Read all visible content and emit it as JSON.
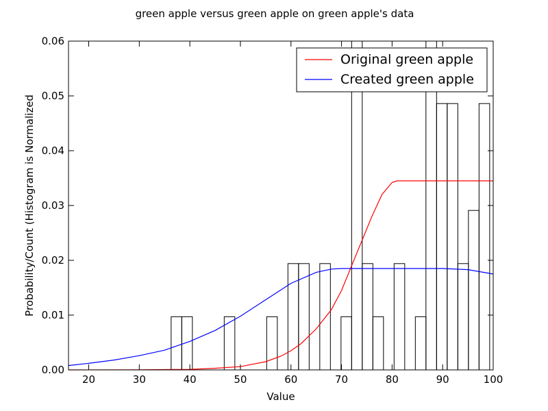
{
  "chart_data": {
    "type": "histogram-with-lines",
    "title": "green apple versus green apple on green apple's data",
    "xlabel": "Value",
    "ylabel": "Probability/Count (Histogram is Normalized",
    "xlim": [
      16,
      100
    ],
    "ylim": [
      0,
      0.06
    ],
    "xticks": [
      20,
      30,
      40,
      50,
      60,
      70,
      80,
      90,
      100
    ],
    "xtick_labels": [
      "20",
      "30",
      "40",
      "50",
      "60",
      "70",
      "80",
      "90",
      "100"
    ],
    "yticks": [
      0,
      0.01,
      0.02,
      0.03,
      0.04,
      0.05,
      0.06
    ],
    "ytick_labels": [
      "0.00",
      "0.01",
      "0.02",
      "0.03",
      "0.04",
      "0.05",
      "0.06"
    ],
    "grid": false,
    "legend_position": "top-right",
    "histogram": {
      "edge_color": "#000000",
      "bars": [
        {
          "x0": 36.3,
          "x1": 38.4,
          "value": 0.0097
        },
        {
          "x0": 38.4,
          "x1": 40.5,
          "value": 0.0097
        },
        {
          "x0": 46.8,
          "x1": 48.9,
          "value": 0.0097
        },
        {
          "x0": 55.2,
          "x1": 57.3,
          "value": 0.0097
        },
        {
          "x0": 59.4,
          "x1": 61.5,
          "value": 0.0194
        },
        {
          "x0": 61.5,
          "x1": 63.6,
          "value": 0.0194
        },
        {
          "x0": 65.7,
          "x1": 67.8,
          "value": 0.0194
        },
        {
          "x0": 69.9,
          "x1": 72.0,
          "value": 0.0097
        },
        {
          "x0": 72.0,
          "x1": 74.1,
          "value": 0.06
        },
        {
          "x0": 74.1,
          "x1": 76.2,
          "value": 0.0194
        },
        {
          "x0": 76.2,
          "x1": 78.3,
          "value": 0.0097
        },
        {
          "x0": 80.4,
          "x1": 82.5,
          "value": 0.0194
        },
        {
          "x0": 84.6,
          "x1": 86.7,
          "value": 0.0097
        },
        {
          "x0": 86.7,
          "x1": 88.8,
          "value": 0.06
        },
        {
          "x0": 88.8,
          "x1": 90.9,
          "value": 0.0486
        },
        {
          "x0": 90.9,
          "x1": 93.0,
          "value": 0.0486
        },
        {
          "x0": 93.0,
          "x1": 95.1,
          "value": 0.0194
        },
        {
          "x0": 95.1,
          "x1": 97.2,
          "value": 0.0291
        },
        {
          "x0": 97.2,
          "x1": 99.3,
          "value": 0.0486
        }
      ]
    },
    "series": [
      {
        "name": "Original green apple",
        "color": "#ff0000",
        "x": [
          16,
          30,
          40,
          45,
          50,
          55,
          58,
          60,
          62,
          65,
          68,
          70,
          72,
          74,
          76,
          78,
          80,
          81,
          82,
          83,
          90,
          100
        ],
        "y": [
          0.0,
          2e-05,
          0.0001,
          0.0003,
          0.0006,
          0.0015,
          0.0025,
          0.0035,
          0.0048,
          0.0075,
          0.011,
          0.0145,
          0.019,
          0.0235,
          0.028,
          0.032,
          0.0342,
          0.0345,
          0.0345,
          0.0345,
          0.0345,
          0.0345
        ]
      },
      {
        "name": "Created green apple",
        "color": "#0000ff",
        "x": [
          16,
          20,
          25,
          30,
          35,
          40,
          45,
          50,
          55,
          60,
          65,
          68,
          70,
          75,
          80,
          85,
          90,
          95,
          100
        ],
        "y": [
          0.0008,
          0.0012,
          0.0018,
          0.0026,
          0.0036,
          0.0052,
          0.0072,
          0.0098,
          0.0128,
          0.0158,
          0.0178,
          0.0184,
          0.0185,
          0.0185,
          0.0185,
          0.0185,
          0.0185,
          0.0183,
          0.0175
        ]
      }
    ]
  }
}
